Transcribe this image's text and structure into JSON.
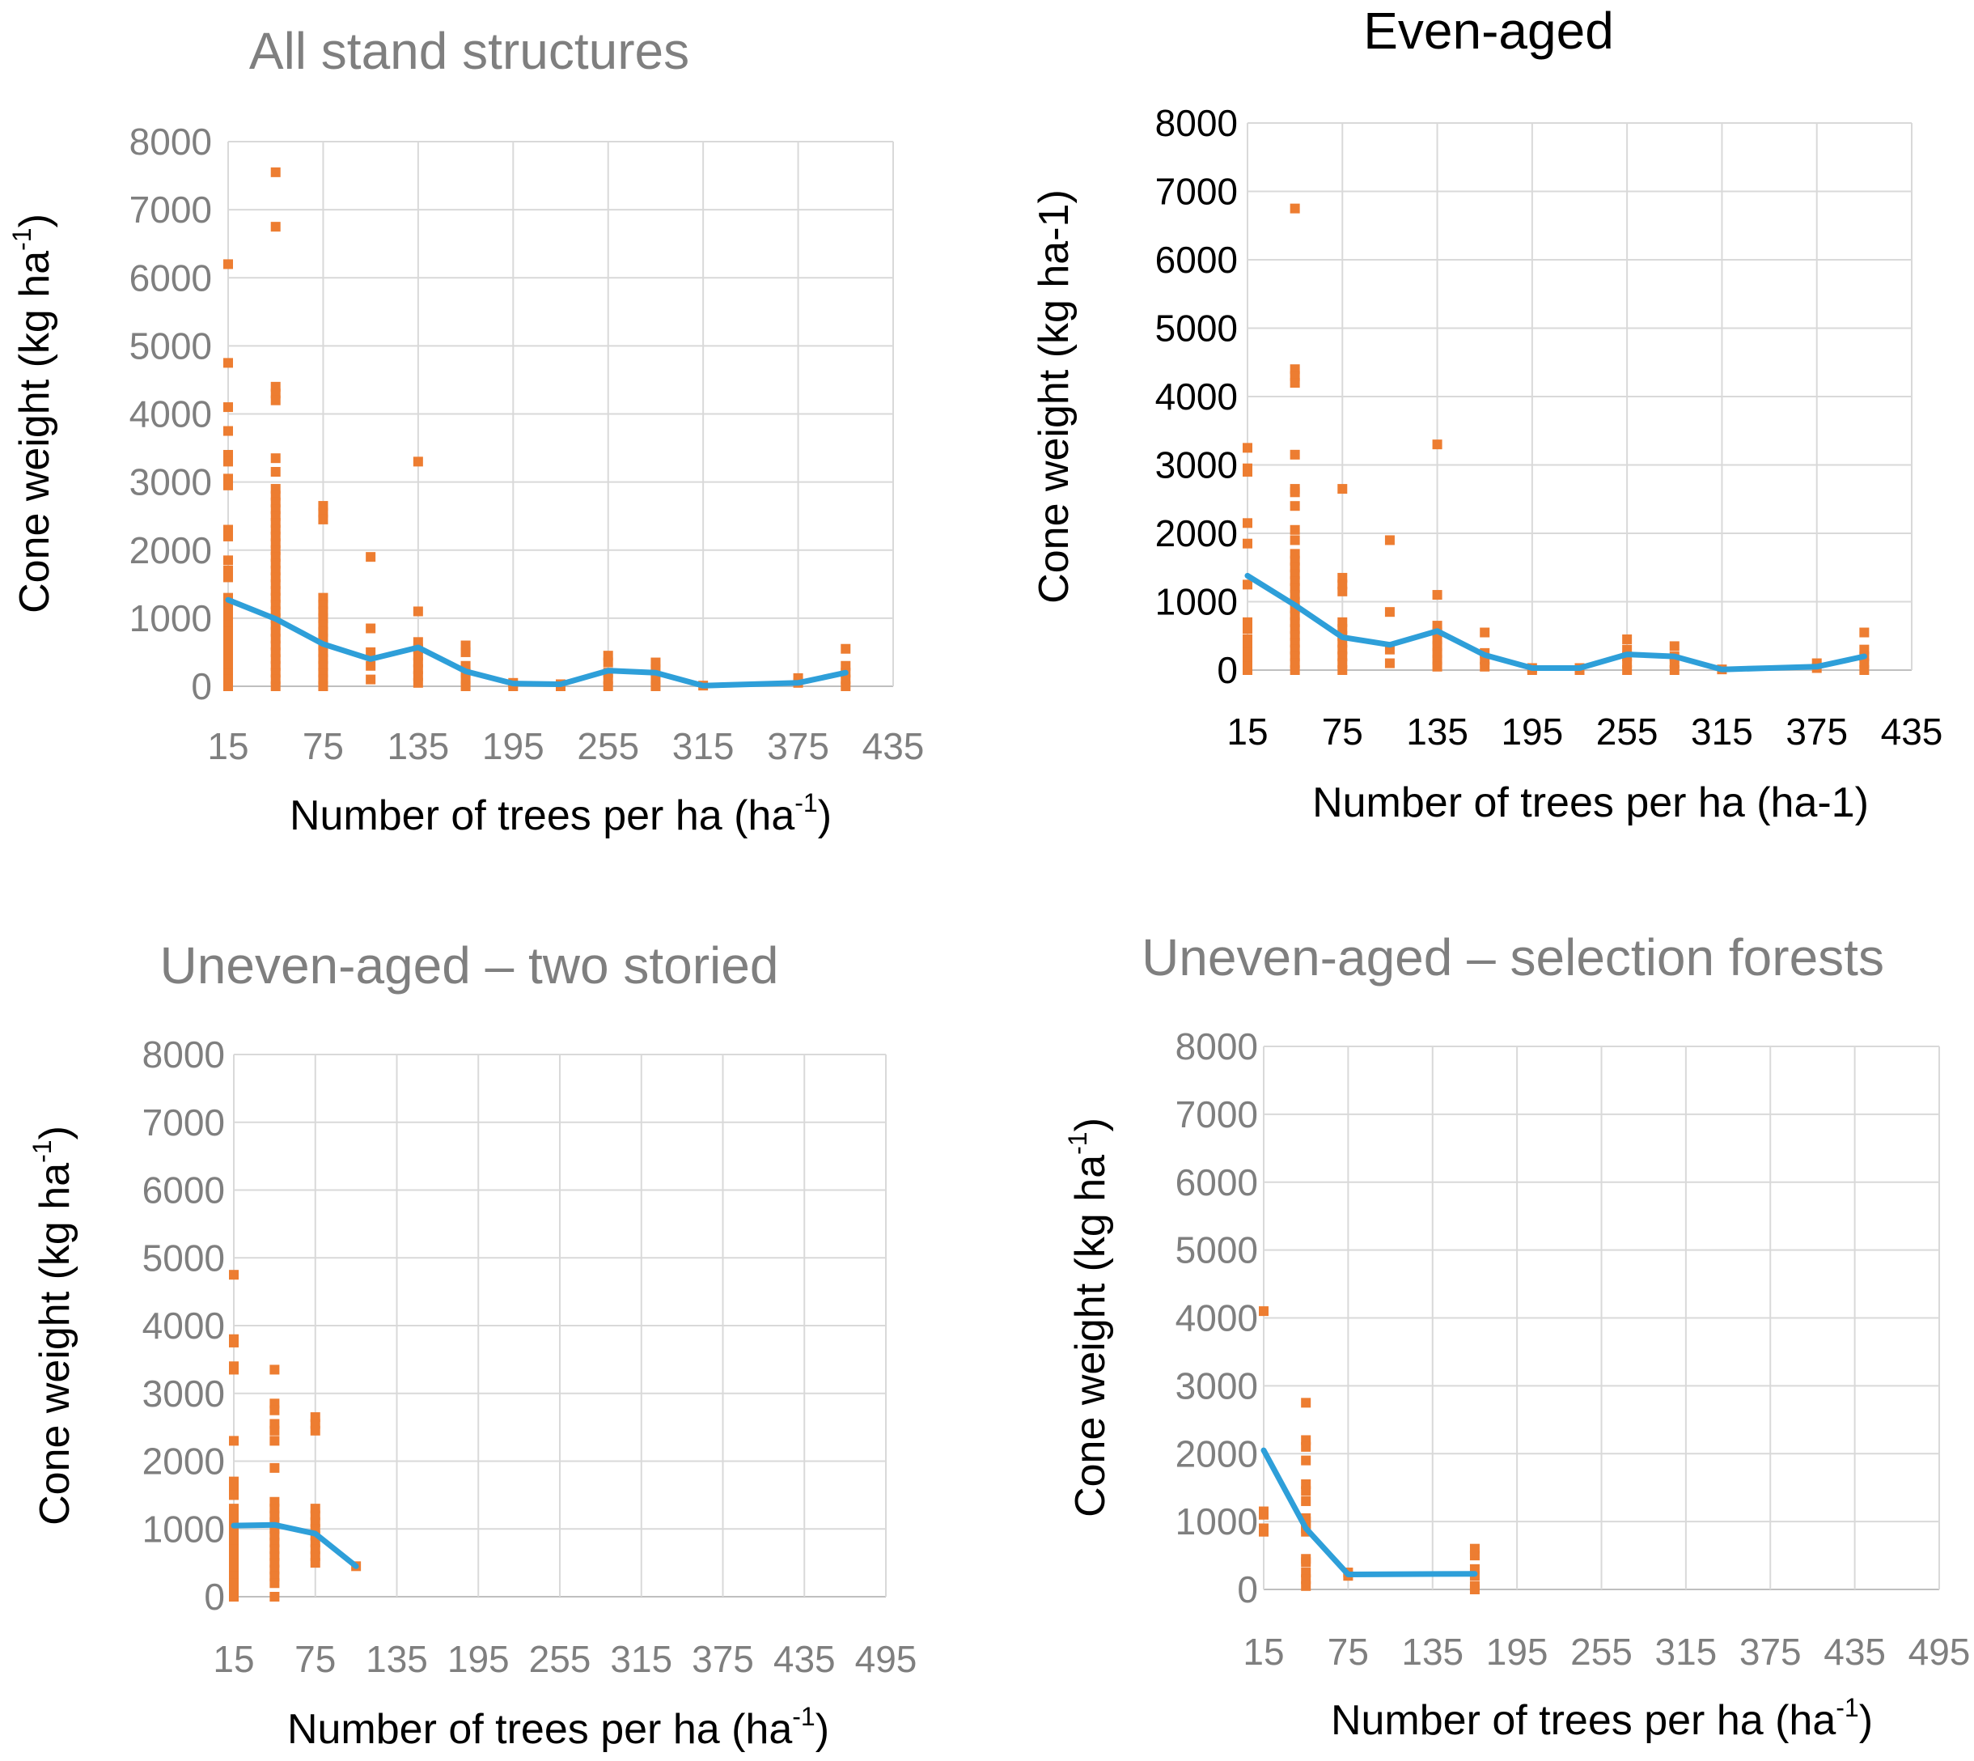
{
  "colors": {
    "points": "#ed7d31",
    "line": "#2e9fd9",
    "grid": "#d9d9d9",
    "axis_text": "#7f7f7f"
  },
  "chart_data": [
    {
      "type": "scatter",
      "title": "All stand structures",
      "title_color": "#7f7f7f",
      "xlabel_main": "Number of trees per ha (ha",
      "xlabel_sup": "-1",
      "xlabel_tail": ")",
      "ylabel_main": "Cone weight (kg ha",
      "ylabel_sup": "-1",
      "ylabel_tail": ")",
      "tick_color": "#7f7f7f",
      "xlim": [
        15,
        435
      ],
      "ylim": [
        0,
        8000
      ],
      "xticks": [
        "15",
        "75",
        "135",
        "195",
        "255",
        "315",
        "375",
        "435"
      ],
      "yticks": [
        "0",
        "1000",
        "2000",
        "3000",
        "4000",
        "5000",
        "6000",
        "7000",
        "8000"
      ],
      "grid": true,
      "scatter": [
        {
          "x": 15,
          "y": [
            6200,
            4750,
            4100,
            3750,
            3400,
            3300,
            3050,
            2950,
            2300,
            2200,
            1850,
            1700,
            1600,
            1300,
            1200,
            1100,
            1000,
            900,
            800,
            700,
            600,
            500,
            400,
            300,
            200,
            100,
            0
          ]
        },
        {
          "x": 45,
          "y": [
            7550,
            6750,
            4400,
            4300,
            4200,
            3350,
            3150,
            2900,
            2800,
            2700,
            2600,
            2500,
            2400,
            2300,
            2200,
            2100,
            2000,
            1900,
            1800,
            1700,
            1600,
            1500,
            1400,
            1300,
            1200,
            1100,
            1000,
            900,
            800,
            700,
            600,
            500,
            400,
            300,
            200,
            100,
            0
          ]
        },
        {
          "x": 75,
          "y": [
            2650,
            2550,
            2450,
            1300,
            1200,
            1100,
            1000,
            900,
            800,
            700,
            600,
            500,
            400,
            300,
            200,
            100,
            0
          ]
        },
        {
          "x": 105,
          "y": [
            1900,
            850,
            500,
            300,
            100
          ]
        },
        {
          "x": 135,
          "y": [
            3300,
            1100,
            650,
            550,
            450,
            350,
            250,
            150,
            50
          ]
        },
        {
          "x": 165,
          "y": [
            600,
            500,
            300,
            200,
            100,
            0
          ]
        },
        {
          "x": 195,
          "y": [
            50,
            0
          ]
        },
        {
          "x": 225,
          "y": [
            30,
            0
          ]
        },
        {
          "x": 255,
          "y": [
            450,
            350,
            200,
            100,
            0
          ]
        },
        {
          "x": 285,
          "y": [
            350,
            250,
            100,
            0
          ]
        },
        {
          "x": 315,
          "y": [
            10
          ]
        },
        {
          "x": 375,
          "y": [
            120,
            50
          ]
        },
        {
          "x": 405,
          "y": [
            550,
            300,
            200,
            100,
            0
          ]
        }
      ],
      "series": [
        {
          "x": [
            15,
            45,
            75,
            105,
            135,
            165,
            195,
            225,
            255,
            285,
            315,
            345,
            375,
            405
          ],
          "y": [
            1270,
            990,
            620,
            400,
            570,
            220,
            40,
            30,
            230,
            200,
            10,
            30,
            50,
            200
          ]
        }
      ]
    },
    {
      "type": "scatter",
      "title": "Even-aged",
      "title_color": "#000000",
      "xlabel_main": "Number of trees per ha (ha-1)",
      "xlabel_sup": "",
      "xlabel_tail": "",
      "ylabel_main": "Cone weight (kg ha-1)",
      "ylabel_sup": "",
      "ylabel_tail": "",
      "tick_color": "#000000",
      "xlim": [
        15,
        435
      ],
      "ylim": [
        0,
        8000
      ],
      "xticks": [
        "15",
        "75",
        "135",
        "195",
        "255",
        "315",
        "375",
        "435"
      ],
      "yticks": [
        "0",
        "1000",
        "2000",
        "3000",
        "4000",
        "5000",
        "6000",
        "7000",
        "8000"
      ],
      "grid": true,
      "scatter": [
        {
          "x": 15,
          "y": [
            3250,
            2950,
            2900,
            2150,
            1850,
            1250,
            700,
            600,
            450,
            350,
            250,
            150,
            50,
            0
          ]
        },
        {
          "x": 45,
          "y": [
            6750,
            4400,
            4300,
            4200,
            3150,
            2650,
            2600,
            2400,
            2050,
            1900,
            1700,
            1600,
            1500,
            1400,
            1300,
            1200,
            1100,
            1000,
            900,
            800,
            700,
            600,
            500,
            400,
            300,
            200,
            100,
            0
          ]
        },
        {
          "x": 75,
          "y": [
            2650,
            1350,
            1250,
            1150,
            700,
            600,
            500,
            400,
            300,
            200,
            100,
            0
          ]
        },
        {
          "x": 105,
          "y": [
            1900,
            850,
            300,
            100
          ]
        },
        {
          "x": 135,
          "y": [
            3300,
            1100,
            650,
            550,
            450,
            350,
            250,
            150,
            50
          ]
        },
        {
          "x": 165,
          "y": [
            550,
            250,
            150,
            50
          ]
        },
        {
          "x": 195,
          "y": [
            30,
            0
          ]
        },
        {
          "x": 225,
          "y": [
            30,
            0
          ]
        },
        {
          "x": 255,
          "y": [
            450,
            300,
            200,
            100,
            0
          ]
        },
        {
          "x": 285,
          "y": [
            350,
            200,
            100,
            0
          ]
        },
        {
          "x": 315,
          "y": [
            10
          ]
        },
        {
          "x": 375,
          "y": [
            100,
            30
          ]
        },
        {
          "x": 405,
          "y": [
            550,
            300,
            200,
            100,
            0
          ]
        }
      ],
      "series": [
        {
          "x": [
            15,
            45,
            75,
            105,
            135,
            165,
            195,
            225,
            255,
            285,
            315,
            345,
            375,
            405
          ],
          "y": [
            1380,
            950,
            480,
            370,
            570,
            220,
            30,
            30,
            230,
            200,
            10,
            30,
            50,
            200
          ]
        }
      ]
    },
    {
      "type": "scatter",
      "title": "Uneven-aged – two storied",
      "title_color": "#7f7f7f",
      "xlabel_main": "Number of trees per ha (ha",
      "xlabel_sup": "-1",
      "xlabel_tail": ")",
      "ylabel_main": "Cone weight (kg ha",
      "ylabel_sup": "-1",
      "ylabel_tail": ")",
      "tick_color": "#7f7f7f",
      "xlim": [
        15,
        495
      ],
      "ylim": [
        0,
        8000
      ],
      "xticks": [
        "15",
        "75",
        "135",
        "195",
        "255",
        "315",
        "375",
        "435",
        "495"
      ],
      "yticks": [
        "0",
        "1000",
        "2000",
        "3000",
        "4000",
        "5000",
        "6000",
        "7000",
        "8000"
      ],
      "grid": true,
      "scatter": [
        {
          "x": 15,
          "y": [
            4750,
            3800,
            3750,
            3400,
            3350,
            2300,
            1700,
            1600,
            1500,
            1300,
            1200,
            1100,
            1000,
            900,
            800,
            700,
            600,
            500,
            400,
            300,
            200,
            100,
            0
          ]
        },
        {
          "x": 45,
          "y": [
            3350,
            2850,
            2750,
            2550,
            2450,
            2300,
            1900,
            1400,
            1300,
            1200,
            1100,
            1000,
            900,
            800,
            700,
            600,
            500,
            400,
            300,
            200,
            0
          ]
        },
        {
          "x": 75,
          "y": [
            2650,
            2550,
            2450,
            1300,
            1200,
            1100,
            1000,
            900,
            800,
            700,
            600,
            500
          ]
        },
        {
          "x": 105,
          "y": [
            450
          ]
        }
      ],
      "series": [
        {
          "x": [
            15,
            45,
            75,
            105
          ],
          "y": [
            1050,
            1060,
            930,
            450
          ]
        }
      ]
    },
    {
      "type": "scatter",
      "title": "Uneven-aged – selection forests",
      "title_color": "#7f7f7f",
      "xlabel_main": "Number of trees per ha (ha",
      "xlabel_sup": "-1",
      "xlabel_tail": ")",
      "ylabel_main": "Cone weight (kg ha",
      "ylabel_sup": "-1",
      "ylabel_tail": ")",
      "tick_color": "#7f7f7f",
      "xlim": [
        15,
        495
      ],
      "ylim": [
        0,
        8000
      ],
      "xticks": [
        "15",
        "75",
        "135",
        "195",
        "255",
        "315",
        "375",
        "435",
        "495"
      ],
      "yticks": [
        "0",
        "1000",
        "2000",
        "3000",
        "4000",
        "5000",
        "6000",
        "7000",
        "8000"
      ],
      "grid": true,
      "scatter": [
        {
          "x": 15,
          "y": [
            4100,
            1150,
            1100,
            900,
            850
          ]
        },
        {
          "x": 45,
          "y": [
            2750,
            2200,
            2100,
            1900,
            1550,
            1450,
            1300,
            1050,
            1000,
            950,
            900,
            850,
            450,
            400,
            250,
            150,
            50
          ]
        },
        {
          "x": 75,
          "y": [
            250,
            200
          ]
        },
        {
          "x": 165,
          "y": [
            600,
            500,
            300,
            200,
            50,
            0
          ]
        }
      ],
      "series": [
        {
          "x": [
            15,
            45,
            75,
            165
          ],
          "y": [
            2050,
            900,
            220,
            230
          ]
        }
      ]
    }
  ]
}
